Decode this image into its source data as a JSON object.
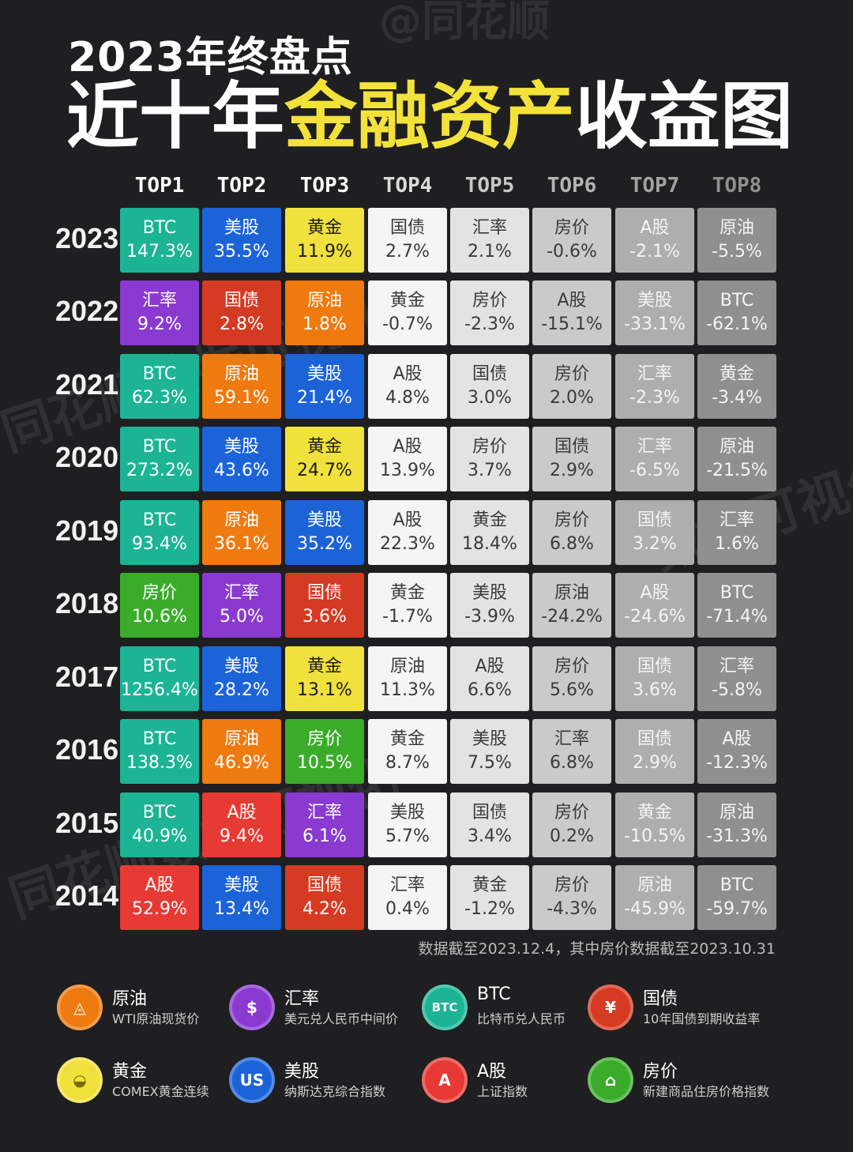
{
  "title": {
    "line1": "2023年终盘点",
    "line2_a": "近十年",
    "line2_b": "金融资产",
    "line2_c": "收益图"
  },
  "watermarks": [
    "@同花顺",
    "同花顺数据可视化",
    "数据可视化",
    "同花顺数据可视化"
  ],
  "footnote": "数据截至2023.12.4，其中房价数据截至2023.10.31",
  "asset_colors": {
    "BTC": "#1cb494",
    "美股": "#1d63d8",
    "黄金": "#f1e13c",
    "原油": "#ef7a10",
    "汇率": "#8a3ad0",
    "国债": "#d43b22",
    "A股": "#e83a34",
    "房价": "#3aac2a"
  },
  "rank_colors": [
    "",
    "",
    "",
    "#f5f5f5",
    "#e3e3e3",
    "#cacaca",
    "#aeaeae",
    "#8f8f8f"
  ],
  "chart_data": {
    "type": "table",
    "columns": [
      "TOP1",
      "TOP2",
      "TOP3",
      "TOP4",
      "TOP5",
      "TOP6",
      "TOP7",
      "TOP8"
    ],
    "rows": [
      {
        "year": "2023",
        "cells": [
          {
            "asset": "BTC",
            "value": "147.3%"
          },
          {
            "asset": "美股",
            "value": "35.5%"
          },
          {
            "asset": "黄金",
            "value": "11.9%"
          },
          {
            "asset": "国债",
            "value": "2.7%"
          },
          {
            "asset": "汇率",
            "value": "2.1%"
          },
          {
            "asset": "房价",
            "value": "-0.6%"
          },
          {
            "asset": "A股",
            "value": "-2.1%"
          },
          {
            "asset": "原油",
            "value": "-5.5%"
          }
        ]
      },
      {
        "year": "2022",
        "cells": [
          {
            "asset": "汇率",
            "value": "9.2%"
          },
          {
            "asset": "国债",
            "value": "2.8%"
          },
          {
            "asset": "原油",
            "value": "1.8%"
          },
          {
            "asset": "黄金",
            "value": "-0.7%"
          },
          {
            "asset": "房价",
            "value": "-2.3%"
          },
          {
            "asset": "A股",
            "value": "-15.1%"
          },
          {
            "asset": "美股",
            "value": "-33.1%"
          },
          {
            "asset": "BTC",
            "value": "-62.1%"
          }
        ]
      },
      {
        "year": "2021",
        "cells": [
          {
            "asset": "BTC",
            "value": "62.3%"
          },
          {
            "asset": "原油",
            "value": "59.1%"
          },
          {
            "asset": "美股",
            "value": "21.4%"
          },
          {
            "asset": "A股",
            "value": "4.8%"
          },
          {
            "asset": "国债",
            "value": "3.0%"
          },
          {
            "asset": "房价",
            "value": "2.0%"
          },
          {
            "asset": "汇率",
            "value": "-2.3%"
          },
          {
            "asset": "黄金",
            "value": "-3.4%"
          }
        ]
      },
      {
        "year": "2020",
        "cells": [
          {
            "asset": "BTC",
            "value": "273.2%"
          },
          {
            "asset": "美股",
            "value": "43.6%"
          },
          {
            "asset": "黄金",
            "value": "24.7%"
          },
          {
            "asset": "A股",
            "value": "13.9%"
          },
          {
            "asset": "房价",
            "value": "3.7%"
          },
          {
            "asset": "国债",
            "value": "2.9%"
          },
          {
            "asset": "汇率",
            "value": "-6.5%"
          },
          {
            "asset": "原油",
            "value": "-21.5%"
          }
        ]
      },
      {
        "year": "2019",
        "cells": [
          {
            "asset": "BTC",
            "value": "93.4%"
          },
          {
            "asset": "原油",
            "value": "36.1%"
          },
          {
            "asset": "美股",
            "value": "35.2%"
          },
          {
            "asset": "A股",
            "value": "22.3%"
          },
          {
            "asset": "黄金",
            "value": "18.4%"
          },
          {
            "asset": "房价",
            "value": "6.8%"
          },
          {
            "asset": "国债",
            "value": "3.2%"
          },
          {
            "asset": "汇率",
            "value": "1.6%"
          }
        ]
      },
      {
        "year": "2018",
        "cells": [
          {
            "asset": "房价",
            "value": "10.6%"
          },
          {
            "asset": "汇率",
            "value": "5.0%"
          },
          {
            "asset": "国债",
            "value": "3.6%"
          },
          {
            "asset": "黄金",
            "value": "-1.7%"
          },
          {
            "asset": "美股",
            "value": "-3.9%"
          },
          {
            "asset": "原油",
            "value": "-24.2%"
          },
          {
            "asset": "A股",
            "value": "-24.6%"
          },
          {
            "asset": "BTC",
            "value": "-71.4%"
          }
        ]
      },
      {
        "year": "2017",
        "cells": [
          {
            "asset": "BTC",
            "value": "1256.4%"
          },
          {
            "asset": "美股",
            "value": "28.2%"
          },
          {
            "asset": "黄金",
            "value": "13.1%"
          },
          {
            "asset": "原油",
            "value": "11.3%"
          },
          {
            "asset": "A股",
            "value": "6.6%"
          },
          {
            "asset": "房价",
            "value": "5.6%"
          },
          {
            "asset": "国债",
            "value": "3.6%"
          },
          {
            "asset": "汇率",
            "value": "-5.8%"
          }
        ]
      },
      {
        "year": "2016",
        "cells": [
          {
            "asset": "BTC",
            "value": "138.3%"
          },
          {
            "asset": "原油",
            "value": "46.9%"
          },
          {
            "asset": "房价",
            "value": "10.5%"
          },
          {
            "asset": "黄金",
            "value": "8.7%"
          },
          {
            "asset": "美股",
            "value": "7.5%"
          },
          {
            "asset": "汇率",
            "value": "6.8%"
          },
          {
            "asset": "国债",
            "value": "2.9%"
          },
          {
            "asset": "A股",
            "value": "-12.3%"
          }
        ]
      },
      {
        "year": "2015",
        "cells": [
          {
            "asset": "BTC",
            "value": "40.9%"
          },
          {
            "asset": "A股",
            "value": "9.4%"
          },
          {
            "asset": "汇率",
            "value": "6.1%"
          },
          {
            "asset": "美股",
            "value": "5.7%"
          },
          {
            "asset": "国债",
            "value": "3.4%"
          },
          {
            "asset": "房价",
            "value": "0.2%"
          },
          {
            "asset": "黄金",
            "value": "-10.5%"
          },
          {
            "asset": "原油",
            "value": "-31.3%"
          }
        ]
      },
      {
        "year": "2014",
        "cells": [
          {
            "asset": "A股",
            "value": "52.9%"
          },
          {
            "asset": "美股",
            "value": "13.4%"
          },
          {
            "asset": "国债",
            "value": "4.2%"
          },
          {
            "asset": "汇率",
            "value": "0.4%"
          },
          {
            "asset": "黄金",
            "value": "-1.2%"
          },
          {
            "asset": "房价",
            "value": "-4.3%"
          },
          {
            "asset": "原油",
            "value": "-45.9%"
          },
          {
            "asset": "BTC",
            "value": "-59.7%"
          }
        ]
      }
    ]
  },
  "legend": [
    {
      "name": "原油",
      "desc": "WTI原油现货价",
      "icon": "oil-drop-icon",
      "glyph": "◬"
    },
    {
      "name": "汇率",
      "desc": "美元兑人民币中间价",
      "icon": "dollar-icon",
      "glyph": "$"
    },
    {
      "name": "BTC",
      "desc": "比特币兑人民币",
      "icon": "btc-icon",
      "glyph": "BTC"
    },
    {
      "name": "国债",
      "desc": "10年国债到期收益率",
      "icon": "bond-icon",
      "glyph": "¥"
    },
    {
      "name": "黄金",
      "desc": "COMEX黄金连续",
      "icon": "gold-icon",
      "glyph": "◒"
    },
    {
      "name": "美股",
      "desc": "纳斯达克综合指数",
      "icon": "us-stock-icon",
      "glyph": "US"
    },
    {
      "name": "A股",
      "desc": "上证指数",
      "icon": "a-share-icon",
      "glyph": "A"
    },
    {
      "name": "房价",
      "desc": "新建商品住房价格指数",
      "icon": "house-icon",
      "glyph": "⌂"
    }
  ]
}
